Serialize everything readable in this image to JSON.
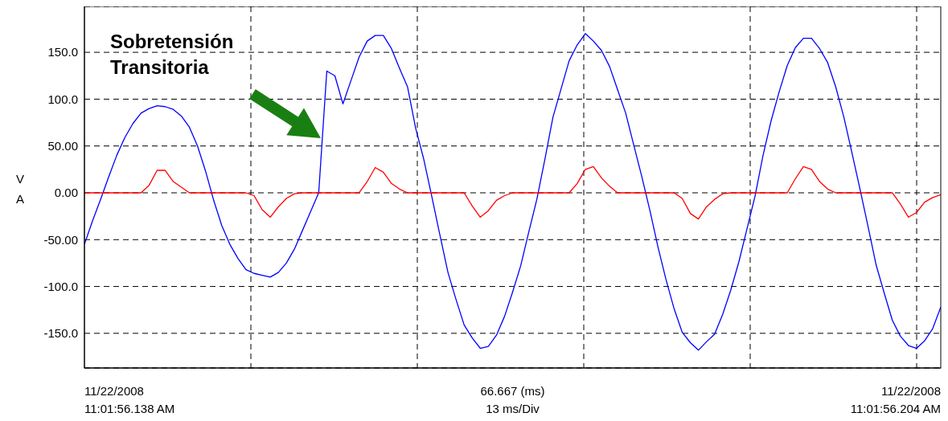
{
  "chart_data": {
    "type": "line",
    "xlabel": "66.667 (ms)",
    "ylabel": "V A",
    "annotations": [
      "13 ms/Div",
      "Sobretensión Transitoria",
      "11/22/2008\n11:01:56.138 AM",
      "11/22/2008\n11:01:56.204 AM"
    ],
    "tick_labels": "y",
    "categories": [
      null,
      null,
      null,
      null,
      null,
      null,
      null,
      null,
      null,
      null,
      null,
      null,
      null,
      null,
      null,
      null,
      null,
      null,
      null,
      null,
      null,
      null,
      null,
      null,
      null,
      null,
      null,
      null,
      null,
      null,
      null,
      null,
      null,
      null,
      null,
      null,
      null,
      null,
      null,
      null,
      null,
      null,
      null,
      null,
      null,
      null,
      null,
      null,
      null,
      null,
      null,
      null,
      null,
      null,
      null,
      null,
      null,
      null,
      null,
      null,
      null,
      null,
      null,
      null,
      null,
      null,
      null,
      null,
      null,
      null,
      null,
      null,
      null,
      null,
      null,
      null,
      null,
      null,
      null,
      null,
      null,
      null,
      null,
      null,
      null,
      null,
      null,
      null,
      null,
      null,
      null,
      null,
      null,
      null,
      null,
      null,
      null,
      null,
      null,
      null,
      null,
      null,
      null,
      null,
      null,
      null,
      null
    ],
    "ylim": [
      -187,
      199
    ],
    "yticks": [
      {
        "value": -150,
        "label": "-150.0"
      },
      {
        "value": -100,
        "label": "-100.0"
      },
      {
        "value": -50,
        "label": "-50.00"
      },
      {
        "value": 0,
        "label": "0.00"
      },
      {
        "value": 50,
        "label": "50.00"
      },
      {
        "value": 100,
        "label": "100.0"
      },
      {
        "value": 150,
        "label": "150.0"
      }
    ],
    "grid": true,
    "series": [
      {
        "color": "#0000ff",
        "values": [
          -55,
          -30,
          -7,
          17,
          40,
          59,
          74,
          85,
          90,
          93,
          92,
          89,
          82,
          70,
          50,
          23,
          -8,
          -35,
          -55,
          -70,
          -82,
          -86,
          -88,
          -90,
          -85,
          -75,
          -60,
          -40,
          -20,
          0,
          130,
          125,
          95,
          120,
          145,
          162,
          168,
          168,
          154,
          133,
          113,
          69,
          36,
          -4,
          -45,
          -85,
          -114,
          -141,
          -155,
          -166,
          -164,
          -152,
          -132,
          -106,
          -78,
          -42,
          -7,
          36,
          81,
          111,
          141,
          158,
          170,
          162,
          152,
          135,
          110,
          85,
          51,
          17,
          -19,
          -58,
          -93,
          -124,
          -149,
          -160,
          -168,
          -159,
          -151,
          -130,
          -104,
          -74,
          -39,
          -4,
          40,
          77,
          108,
          136,
          155,
          165,
          165,
          154,
          139,
          113,
          81,
          43,
          4,
          -36,
          -77,
          -107,
          -136,
          -153,
          -163,
          -166,
          -158,
          -145,
          -122
        ]
      },
      {
        "color": "#ff0000",
        "values": [
          0,
          0,
          0,
          0,
          0,
          0,
          0,
          0,
          8,
          24,
          24,
          12,
          6,
          0,
          0,
          0,
          0,
          0,
          0,
          0,
          0,
          -3,
          -18,
          -26,
          -15,
          -6,
          -1,
          0,
          0,
          0,
          0,
          0,
          0,
          0,
          0,
          12,
          27,
          22,
          10,
          4,
          0,
          0,
          0,
          0,
          0,
          0,
          0,
          0,
          -14,
          -26,
          -19,
          -8,
          -3,
          0,
          0,
          0,
          0,
          0,
          0,
          0,
          0,
          10,
          25,
          28,
          16,
          7,
          0,
          0,
          0,
          0,
          0,
          0,
          0,
          0,
          -6,
          -22,
          -28,
          -15,
          -7,
          -1,
          0,
          0,
          0,
          0,
          0,
          0,
          0,
          0,
          15,
          28,
          25,
          12,
          4,
          0,
          0,
          0,
          0,
          0,
          0,
          0,
          0,
          -12,
          -26,
          -21,
          -10,
          -5,
          -2
        ]
      }
    ]
  }
}
